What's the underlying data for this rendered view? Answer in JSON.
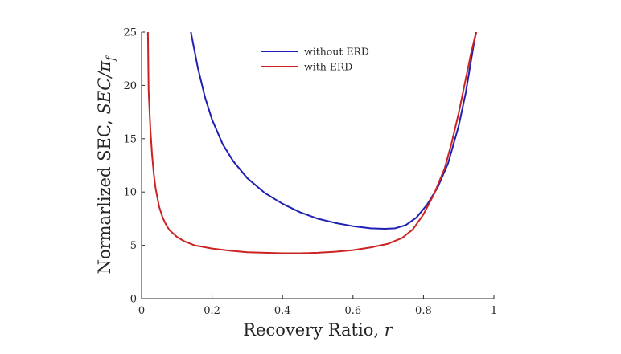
{
  "chart_data": {
    "type": "line",
    "title": "",
    "xlabel": "Recovery Ratio, r",
    "ylabel": "Normarlized SEC, SEC/π_f",
    "xlabel_parts": {
      "text": "Recovery Ratio, ",
      "var": "r"
    },
    "ylabel_parts": {
      "text": "Normarlized SEC, ",
      "var": "SEC/π",
      "sub": "f"
    },
    "xlim": [
      0,
      1
    ],
    "ylim": [
      0,
      25
    ],
    "xticks": [
      0,
      0.2,
      0.4,
      0.6,
      0.8,
      1
    ],
    "xtick_labels": [
      "0",
      "0.2",
      "0.4",
      "0.6",
      "0.8",
      "1"
    ],
    "yticks": [
      0,
      5,
      10,
      15,
      20,
      25
    ],
    "ytick_labels": [
      "0",
      "5",
      "10",
      "15",
      "20",
      "25"
    ],
    "grid": false,
    "legend_position": "top-center",
    "series": [
      {
        "name": "without ERD",
        "color": "#1f1fb4",
        "x": [
          0.14,
          0.16,
          0.18,
          0.2,
          0.23,
          0.26,
          0.3,
          0.35,
          0.4,
          0.45,
          0.5,
          0.55,
          0.6,
          0.65,
          0.69,
          0.72,
          0.75,
          0.78,
          0.81,
          0.84,
          0.87,
          0.9,
          0.92,
          0.935,
          0.945,
          0.95
        ],
        "y": [
          25,
          21.6,
          18.9,
          16.8,
          14.5,
          12.9,
          11.3,
          9.9,
          8.9,
          8.1,
          7.5,
          7.1,
          6.8,
          6.6,
          6.55,
          6.6,
          6.9,
          7.6,
          8.8,
          10.4,
          12.7,
          16.2,
          19.3,
          22.3,
          24.3,
          25
        ]
      },
      {
        "name": "with ERD",
        "color": "#cc2222",
        "x": [
          0.018,
          0.02,
          0.025,
          0.03,
          0.035,
          0.04,
          0.05,
          0.06,
          0.07,
          0.08,
          0.1,
          0.12,
          0.15,
          0.2,
          0.25,
          0.3,
          0.35,
          0.4,
          0.45,
          0.5,
          0.55,
          0.6,
          0.65,
          0.7,
          0.74,
          0.77,
          0.8,
          0.83,
          0.86,
          0.88,
          0.9,
          0.92,
          0.935,
          0.945,
          0.95
        ],
        "y": [
          25,
          19.5,
          15.9,
          13.4,
          11.6,
          10.3,
          8.6,
          7.6,
          6.9,
          6.4,
          5.8,
          5.4,
          5.0,
          4.7,
          4.5,
          4.35,
          4.3,
          4.25,
          4.25,
          4.3,
          4.4,
          4.55,
          4.8,
          5.15,
          5.7,
          6.5,
          7.9,
          9.8,
          12.2,
          14.6,
          17.4,
          20.6,
          23.0,
          24.4,
          25
        ]
      }
    ]
  }
}
